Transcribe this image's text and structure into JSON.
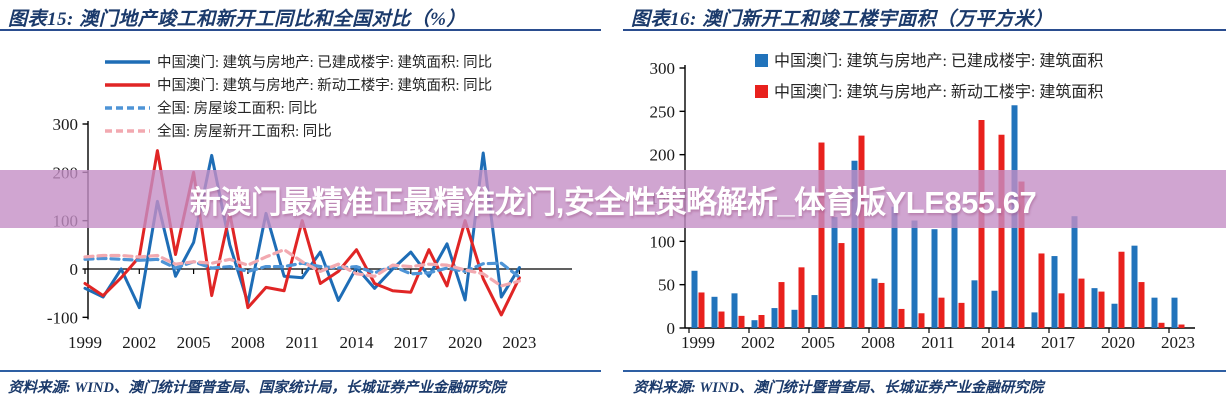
{
  "banner": {
    "text": "新澳门最精准正最精准龙门,安全性策略解析_体育版YLE855.67",
    "bg_color": "rgba(196,143,197,0.8)",
    "text_color": "#ffffff"
  },
  "panels": [
    {
      "title": "图表15:  澳门地产竣工和新开工同比和全国对比（%）",
      "source": "资料来源: WIND、澳门统计暨普查局、国家统计局，长城证券产业金融研究院"
    },
    {
      "title": "图表16:  澳门新开工和竣工楼宇面积（万平方米）",
      "source": "资料来源: WIND、澳门统计暨普查局、长城证券产业金融研究院"
    }
  ],
  "chart_data": [
    {
      "type": "line",
      "title": "澳门地产竣工和新开工同比和全国对比（%）",
      "x": [
        1999,
        2000,
        2001,
        2002,
        2003,
        2004,
        2005,
        2006,
        2007,
        2008,
        2009,
        2010,
        2011,
        2012,
        2013,
        2014,
        2015,
        2016,
        2017,
        2018,
        2019,
        2020,
        2021,
        2022,
        2023
      ],
      "x_tick_labels": [
        "1999",
        "2002",
        "2005",
        "2008",
        "2011",
        "2014",
        "2017",
        "2020",
        "2023"
      ],
      "ylim": [
        -100,
        300
      ],
      "yticks": [
        "300",
        "200",
        "100",
        "0",
        "-100"
      ],
      "ytick_values": [
        300,
        200,
        100,
        0,
        -100
      ],
      "grid": false,
      "legend_position": "top-left",
      "series": [
        {
          "name": "中国澳门: 建筑与房地产: 已建成楼宇: 建筑面积: 同比",
          "style": "solid",
          "color": "#1e6db6",
          "values": [
            -40,
            -58,
            0,
            -80,
            140,
            -15,
            55,
            235,
            50,
            -70,
            115,
            -15,
            -18,
            35,
            -65,
            3,
            -40,
            0,
            35,
            -15,
            52,
            -64,
            240,
            -58,
            3
          ]
        },
        {
          "name": "中国澳门: 建筑与房地产: 新动工楼宇: 建筑面积: 同比",
          "style": "solid",
          "color": "#e02525",
          "values": [
            -30,
            -55,
            -18,
            25,
            245,
            30,
            200,
            -55,
            115,
            -80,
            -38,
            -45,
            100,
            -30,
            -5,
            40,
            -30,
            -45,
            -48,
            40,
            -35,
            100,
            -20,
            -95,
            -18
          ]
        },
        {
          "name": "全国: 房屋竣工面积: 同比",
          "style": "dashed",
          "color": "#4e94d6",
          "values": [
            20,
            22,
            20,
            18,
            20,
            2,
            15,
            2,
            5,
            -5,
            5,
            5,
            12,
            5,
            2,
            5,
            -8,
            6,
            -10,
            -8,
            2,
            -5,
            11,
            12,
            -17
          ]
        },
        {
          "name": "全国: 房屋新开工面积: 同比",
          "style": "dashed",
          "color": "#f2a9b0",
          "values": [
            25,
            28,
            28,
            25,
            28,
            10,
            15,
            12,
            20,
            8,
            25,
            40,
            15,
            -5,
            10,
            -10,
            -15,
            8,
            5,
            10,
            8,
            -2,
            -10,
            -35,
            -25
          ]
        }
      ]
    },
    {
      "type": "bar",
      "title": "澳门新开工和竣工楼宇面积（万平方米）",
      "x": [
        1999,
        2000,
        2001,
        2002,
        2003,
        2004,
        2005,
        2006,
        2007,
        2008,
        2009,
        2010,
        2011,
        2012,
        2013,
        2014,
        2015,
        2016,
        2017,
        2018,
        2019,
        2020,
        2021,
        2022,
        2023
      ],
      "x_tick_labels": [
        "1999",
        "2002",
        "2005",
        "2008",
        "2011",
        "2014",
        "2017",
        "2020",
        "2023"
      ],
      "ylim": [
        0,
        300
      ],
      "yticks": [
        "300",
        "250",
        "200",
        "150",
        "100",
        "50",
        "0"
      ],
      "ytick_values": [
        300,
        250,
        200,
        150,
        100,
        50,
        0
      ],
      "grid": false,
      "legend_position": "top",
      "series": [
        {
          "name": "中国澳门: 建筑与房地产: 已建成楼宇: 建筑面积",
          "color": "#2173bb",
          "values": [
            66,
            36,
            40,
            9,
            23,
            21,
            38,
            128,
            193,
            57,
            140,
            124,
            114,
            138,
            55,
            43,
            257,
            18,
            83,
            129,
            46,
            28,
            95,
            35,
            35
          ]
        },
        {
          "name": "中国澳门: 建筑与房地产: 新动工楼宇: 建筑面积",
          "color": "#e8211d",
          "values": [
            41,
            19,
            14,
            15,
            53,
            70,
            214,
            98,
            222,
            52,
            22,
            17,
            35,
            29,
            240,
            223,
            169,
            86,
            40,
            57,
            42,
            88,
            53,
            6,
            4
          ]
        }
      ]
    }
  ]
}
